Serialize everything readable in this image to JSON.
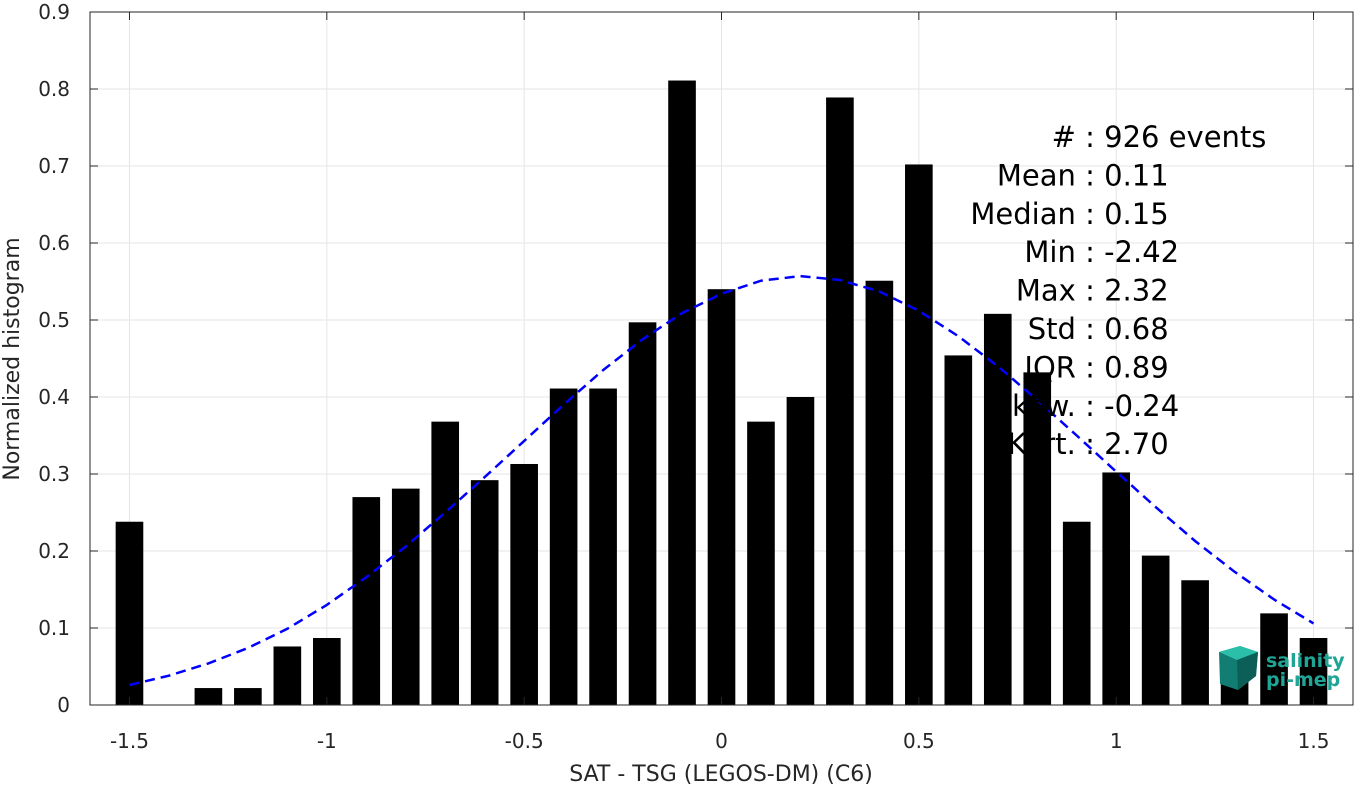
{
  "chart_data": {
    "type": "bar",
    "xlabel": "SAT - TSG (LEGOS-DM) (C6)",
    "ylabel": "Normalized histogram",
    "xlim": [
      -1.6,
      1.6
    ],
    "ylim": [
      0,
      0.9
    ],
    "xticks": [
      -1.5,
      -1,
      -0.5,
      0,
      0.5,
      1,
      1.5
    ],
    "xtick_labels": [
      "-1.5",
      "-1",
      "-0.5",
      "0",
      "0.5",
      "1",
      "1.5"
    ],
    "yticks": [
      0,
      0.1,
      0.2,
      0.3,
      0.4,
      0.5,
      0.6,
      0.7,
      0.8,
      0.9
    ],
    "ytick_labels": [
      "0",
      "0.1",
      "0.2",
      "0.3",
      "0.4",
      "0.5",
      "0.6",
      "0.7",
      "0.8",
      "0.9"
    ],
    "grid": true,
    "bar_color": "#000000",
    "bar_width": 0.07,
    "bins": [
      -1.5,
      -1.4,
      -1.3,
      -1.2,
      -1.1,
      -1.0,
      -0.9,
      -0.8,
      -0.7,
      -0.6,
      -0.5,
      -0.4,
      -0.3,
      -0.2,
      -0.1,
      0.0,
      0.1,
      0.2,
      0.3,
      0.4,
      0.5,
      0.6,
      0.7,
      0.8,
      0.9,
      1.0,
      1.1,
      1.2,
      1.3,
      1.4,
      1.5
    ],
    "values": [
      0.238,
      0.0,
      0.022,
      0.022,
      0.076,
      0.087,
      0.27,
      0.281,
      0.368,
      0.292,
      0.313,
      0.411,
      0.411,
      0.497,
      0.811,
      0.54,
      0.368,
      0.4,
      0.789,
      0.551,
      0.702,
      0.454,
      0.508,
      0.432,
      0.238,
      0.302,
      0.194,
      0.162,
      0.065,
      0.119,
      0.087
    ],
    "fit": {
      "type": "gaussian",
      "color": "#0000ff",
      "style": "dashed",
      "x": [
        -1.5,
        -1.4,
        -1.3,
        -1.2,
        -1.1,
        -1.0,
        -0.9,
        -0.8,
        -0.7,
        -0.6,
        -0.5,
        -0.4,
        -0.3,
        -0.2,
        -0.1,
        0.0,
        0.1,
        0.2,
        0.3,
        0.4,
        0.5,
        0.6,
        0.7,
        0.8,
        0.9,
        1.0,
        1.1,
        1.2,
        1.3,
        1.4,
        1.5
      ],
      "y": [
        0.026,
        0.038,
        0.054,
        0.074,
        0.099,
        0.13,
        0.166,
        0.206,
        0.25,
        0.296,
        0.343,
        0.39,
        0.435,
        0.475,
        0.509,
        0.534,
        0.551,
        0.557,
        0.552,
        0.537,
        0.512,
        0.479,
        0.44,
        0.396,
        0.35,
        0.303,
        0.257,
        0.213,
        0.173,
        0.137,
        0.106
      ]
    }
  },
  "stats": [
    {
      "label": "#",
      "sep": ":",
      "value": "926 events"
    },
    {
      "label": "Mean",
      "sep": ":",
      "value": "0.11"
    },
    {
      "label": "Median",
      "sep": ":",
      "value": "0.15"
    },
    {
      "label": "Min",
      "sep": ":",
      "value": "-2.42"
    },
    {
      "label": "Max",
      "sep": ":",
      "value": "2.32"
    },
    {
      "label": "Std",
      "sep": ":",
      "value": "0.68"
    },
    {
      "label": "IQR",
      "sep": ":",
      "value": "0.89"
    },
    {
      "label": "Skew.",
      "sep": ":",
      "value": "-0.24"
    },
    {
      "label": "Kurt.",
      "sep": ":",
      "value": "2.70"
    }
  ],
  "logo": {
    "line1": "salinity",
    "line2": "pi-mep",
    "color": "#1ea596"
  }
}
